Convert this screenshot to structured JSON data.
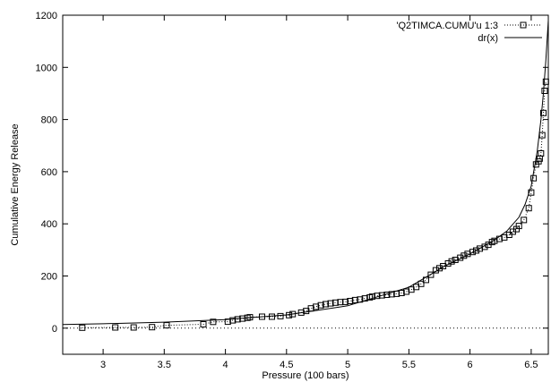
{
  "chart_data": {
    "type": "scatter",
    "xlabel": "Pressure (100 bars)",
    "ylabel": "Cumulative Energy Release",
    "xlim": [
      2.67,
      6.64
    ],
    "ylim": [
      -100,
      1200
    ],
    "x_ticks": [
      3,
      3.5,
      4,
      4.5,
      5,
      5.5,
      6,
      6.5
    ],
    "y_ticks": [
      0,
      200,
      400,
      600,
      800,
      1000,
      1200
    ],
    "grid": false,
    "legend_position": "top-right",
    "series": [
      {
        "name": "'Q2TIMCA.CUMU'u 1:3",
        "style": "dotted line with open square markers",
        "x": [
          2.83,
          3.1,
          3.25,
          3.4,
          3.52,
          3.82,
          3.9,
          4.02,
          4.06,
          4.1,
          4.14,
          4.18,
          4.2,
          4.3,
          4.38,
          4.45,
          4.52,
          4.55,
          4.62,
          4.66,
          4.7,
          4.74,
          4.78,
          4.82,
          4.86,
          4.9,
          4.94,
          4.98,
          5.02,
          5.06,
          5.1,
          5.14,
          5.18,
          5.2,
          5.24,
          5.28,
          5.32,
          5.36,
          5.4,
          5.44,
          5.48,
          5.52,
          5.56,
          5.6,
          5.64,
          5.68,
          5.72,
          5.75,
          5.78,
          5.82,
          5.85,
          5.88,
          5.92,
          5.95,
          5.98,
          6.02,
          6.05,
          6.08,
          6.12,
          6.15,
          6.18,
          6.2,
          6.24,
          6.28,
          6.32,
          6.35,
          6.38,
          6.4,
          6.44,
          6.48,
          6.5,
          6.52,
          6.54,
          6.56,
          6.57,
          6.58,
          6.59,
          6.6,
          6.61,
          6.62
        ],
        "y": [
          2,
          3,
          3,
          4,
          11,
          15,
          24,
          25,
          30,
          34,
          37,
          40,
          42,
          44,
          44,
          46,
          50,
          54,
          60,
          66,
          76,
          82,
          88,
          92,
          95,
          98,
          100,
          101,
          104,
          108,
          110,
          114,
          118,
          121,
          124,
          126,
          128,
          130,
          132,
          135,
          140,
          148,
          158,
          170,
          185,
          205,
          222,
          230,
          238,
          248,
          256,
          262,
          270,
          278,
          285,
          292,
          298,
          305,
          312,
          320,
          330,
          335,
          342,
          348,
          358,
          370,
          380,
          392,
          415,
          460,
          520,
          575,
          628,
          640,
          650,
          670,
          740,
          825,
          910,
          945
        ]
      },
      {
        "name": "dr(x)",
        "style": "solid line",
        "x": [
          2.67,
          3.0,
          3.5,
          4.0,
          4.5,
          5.0,
          5.5,
          5.8,
          6.0,
          6.2,
          6.3,
          6.4,
          6.45,
          6.5,
          6.55,
          6.58,
          6.6,
          6.62,
          6.64
        ],
        "y": [
          14,
          17,
          23,
          33,
          51,
          86,
          157,
          240,
          285,
          338,
          372,
          425,
          475,
          545,
          680,
          800,
          900,
          1030,
          1180
        ]
      }
    ]
  }
}
